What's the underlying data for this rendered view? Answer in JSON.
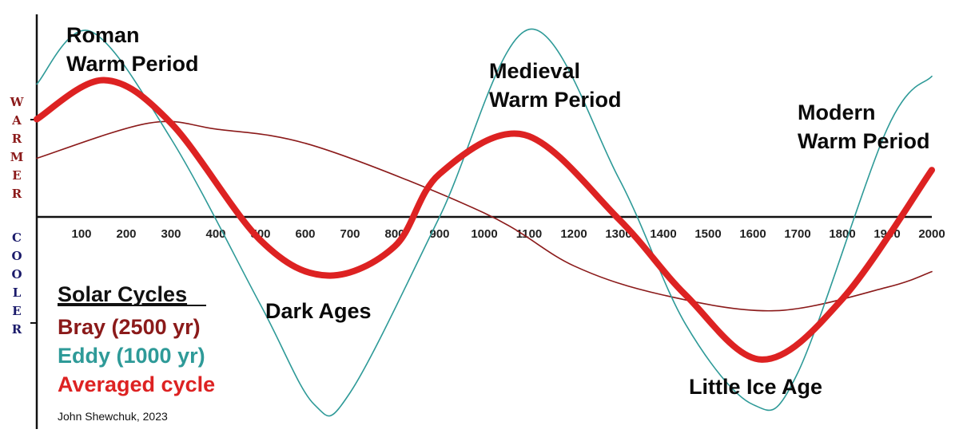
{
  "chart_data": {
    "type": "line",
    "x_ticks": [
      100,
      200,
      300,
      400,
      500,
      600,
      700,
      800,
      900,
      1000,
      1100,
      1200,
      1300,
      1400,
      1500,
      1600,
      1700,
      1800,
      1900,
      2000
    ],
    "x_range": [
      0,
      2000
    ],
    "y_range": [
      -1,
      1
    ],
    "y_axis_upper_label": "WARMER",
    "y_axis_lower_label": "COOLER",
    "series": [
      {
        "name": "Bray (2500 yr)",
        "color": "#8b1a1a",
        "points": [
          [
            0,
            0.3
          ],
          [
            250,
            0.48
          ],
          [
            400,
            0.45
          ],
          [
            625,
            0.36
          ],
          [
            1000,
            0.02
          ],
          [
            1200,
            -0.25
          ],
          [
            1400,
            -0.4
          ],
          [
            1650,
            -0.48
          ],
          [
            1900,
            -0.36
          ],
          [
            2000,
            -0.28
          ]
        ]
      },
      {
        "name": "Eddy (1000 yr)",
        "color": "#2e9a98",
        "points": [
          [
            0,
            0.68
          ],
          [
            120,
            0.95
          ],
          [
            300,
            0.4
          ],
          [
            500,
            -0.45
          ],
          [
            620,
            -0.96
          ],
          [
            700,
            -0.9
          ],
          [
            900,
            0.0
          ],
          [
            1100,
            0.96
          ],
          [
            1300,
            0.2
          ],
          [
            1450,
            -0.55
          ],
          [
            1600,
            -0.96
          ],
          [
            1700,
            -0.8
          ],
          [
            1900,
            0.45
          ],
          [
            2000,
            0.72
          ]
        ]
      },
      {
        "name": "Averaged cycle",
        "color": "#dd2222",
        "points": [
          [
            0,
            0.5
          ],
          [
            150,
            0.7
          ],
          [
            300,
            0.48
          ],
          [
            500,
            -0.12
          ],
          [
            650,
            -0.3
          ],
          [
            800,
            -0.15
          ],
          [
            900,
            0.22
          ],
          [
            1090,
            0.42
          ],
          [
            1300,
            -0.01
          ],
          [
            1450,
            -0.4
          ],
          [
            1620,
            -0.73
          ],
          [
            1800,
            -0.42
          ],
          [
            2000,
            0.24
          ]
        ]
      }
    ],
    "annotations": [
      {
        "text": [
          "Roman",
          "Warm Period"
        ],
        "x": 150
      },
      {
        "text": [
          "Medieval",
          "Warm Period"
        ],
        "x": 1100
      },
      {
        "text": [
          "Modern",
          "Warm Period"
        ],
        "x": 1900
      },
      {
        "text": [
          "Dark Ages"
        ],
        "x": 650
      },
      {
        "text": [
          "Little Ice Age"
        ],
        "x": 1620
      }
    ],
    "legend": {
      "title": "Solar Cycles",
      "placement": "bottom-left",
      "items": [
        {
          "label": "Bray  (2500 yr)",
          "color": "#8b1a1a"
        },
        {
          "label": "Eddy (1000 yr)",
          "color": "#2e9a98"
        },
        {
          "label": "Averaged cycle",
          "color": "#dd2222"
        }
      ]
    },
    "colors": {
      "warmer": "#8b1a1a",
      "cooler": "#1a1a6a",
      "axis": "#111111"
    },
    "credit": "John Shewchuk, 2023"
  }
}
